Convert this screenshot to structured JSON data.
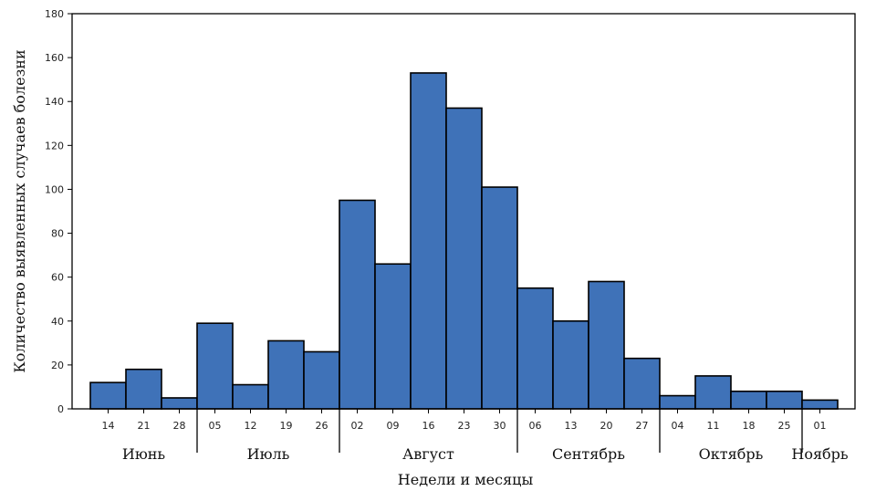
{
  "chart_data": {
    "type": "bar",
    "title": "",
    "xlabel": "Недели и месяцы",
    "ylabel": "Количество выявленных случаев болезни",
    "ylim": [
      0,
      180
    ],
    "yticks": [
      "0",
      "20",
      "40",
      "60",
      "80",
      "100",
      "120",
      "140",
      "160",
      "180"
    ],
    "categories": [
      "14",
      "21",
      "28",
      "05",
      "12",
      "19",
      "26",
      "02",
      "09",
      "16",
      "23",
      "30",
      "06",
      "13",
      "20",
      "27",
      "04",
      "11",
      "18",
      "25",
      "01"
    ],
    "values": [
      12,
      18,
      5,
      39,
      11,
      31,
      26,
      95,
      66,
      153,
      137,
      101,
      55,
      40,
      58,
      23,
      6,
      15,
      8,
      8,
      4
    ],
    "months": [
      {
        "name": "Июнь",
        "start": 0,
        "end": 3
      },
      {
        "name": "Июль",
        "start": 3,
        "end": 7
      },
      {
        "name": "Август",
        "start": 7,
        "end": 12
      },
      {
        "name": "Сентябрь",
        "start": 12,
        "end": 16
      },
      {
        "name": "Октябрь",
        "start": 16,
        "end": 20
      },
      {
        "name": "Ноябрь",
        "start": 20,
        "end": 21
      }
    ],
    "bar_color": "#3f72b8",
    "grid": false,
    "legend": "none"
  }
}
